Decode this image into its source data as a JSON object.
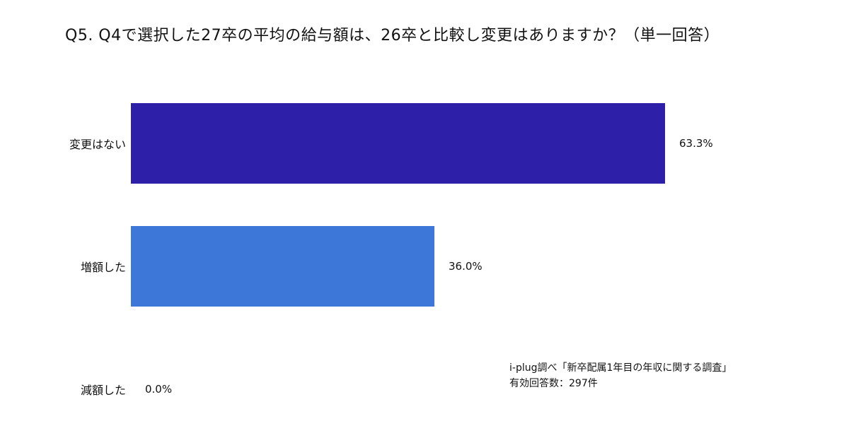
{
  "title": "Q5. Q4で選択した27卒の平均の給与額は、26卒と比較し変更はありますか？（単一回答）",
  "source": {
    "line1": "i-plug調べ「新卒配属1年目の年収に関する調査」",
    "line2": "有効回答数：297件"
  },
  "chart_data": {
    "type": "bar",
    "orientation": "horizontal",
    "title": "Q5. Q4で選択した27卒の平均の給与額は、26卒と比較し変更はありますか？（単一回答）",
    "categories": [
      "変更はない",
      "増額した",
      "減額した"
    ],
    "values": [
      63.3,
      36.0,
      0.0
    ],
    "value_labels": [
      "63.3%",
      "36.0%",
      "0.0%"
    ],
    "bar_colors": [
      "#2e1fa8",
      "#3d78d8",
      "#3d78d8"
    ],
    "xlabel": "",
    "ylabel": "",
    "xlim": [
      0,
      100
    ],
    "grid": false,
    "legend": "none",
    "background_color": "#ffffff"
  }
}
